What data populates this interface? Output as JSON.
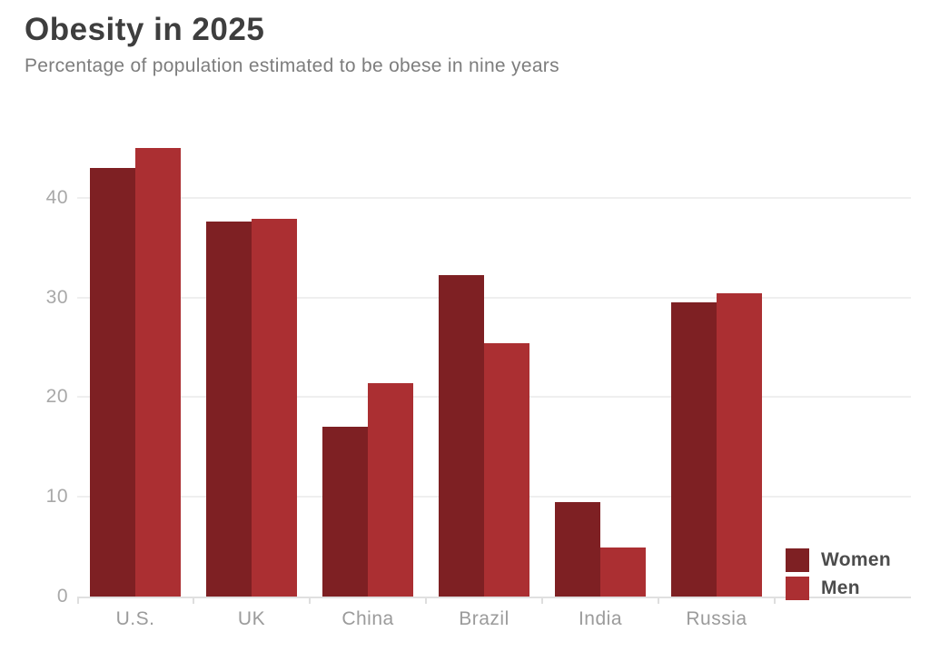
{
  "header": {
    "title": "Obesity in 2025",
    "subtitle": "Percentage of population estimated to be obese in nine years"
  },
  "chart_data": {
    "type": "bar",
    "title": "Obesity in 2025",
    "subtitle": "Percentage of population estimated to be obese in nine years",
    "categories": [
      "U.S.",
      "UK",
      "China",
      "Brazil",
      "India",
      "Russia"
    ],
    "series": [
      {
        "name": "Women",
        "color": "#7e2023",
        "values": [
          43.0,
          37.6,
          17.0,
          32.2,
          9.5,
          29.5
        ]
      },
      {
        "name": "Men",
        "color": "#ab2f32",
        "values": [
          45.0,
          37.9,
          21.4,
          25.4,
          4.9,
          30.4
        ]
      }
    ],
    "xlabel": "",
    "ylabel": "",
    "ylim": [
      0,
      48
    ],
    "yticks": [
      0,
      10,
      20,
      30,
      40
    ],
    "grid": true,
    "legend_position": "bottom-right"
  },
  "colors": {
    "background": "#ffffff",
    "title_text": "#3e3e3e",
    "subtitle_text": "#7d7d7d",
    "axis_line": "#e0e0e0",
    "grid_line": "#efefef",
    "y_tick_text": "#a8a8a8",
    "x_tick_text": "#9b9b9b",
    "legend_text": "#4c4c4c",
    "women_bar": "#7e2023",
    "men_bar": "#ab2f32"
  }
}
